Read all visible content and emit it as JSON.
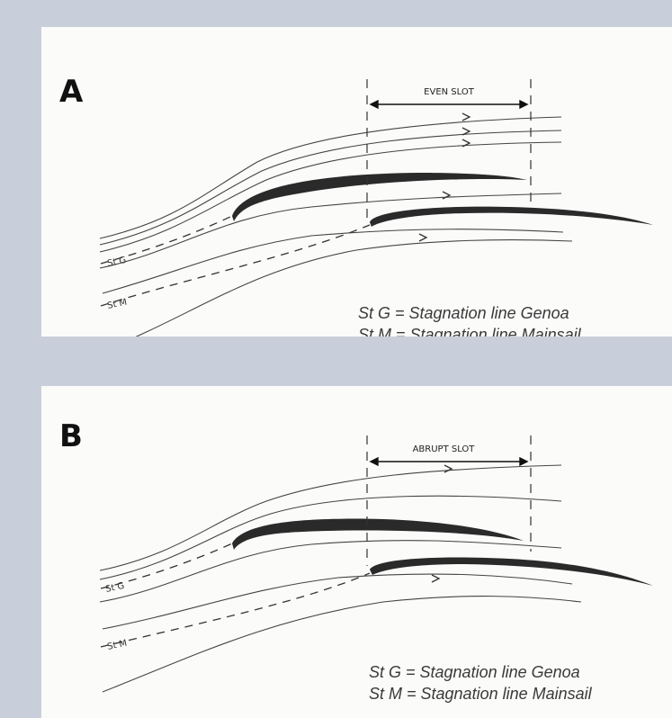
{
  "panels": [
    {
      "letter": "A",
      "slot_label": "EVEN SLOT",
      "stagnation_genoa": "St G",
      "stagnation_main": "St M",
      "legend": [
        "St G = Stagnation line Genoa",
        "St M = Stagnation line Mainsail"
      ]
    },
    {
      "letter": "B",
      "slot_label": "ABRUPT SLOT",
      "stagnation_genoa": "St G",
      "stagnation_main": "St M",
      "legend": [
        "St G = Stagnation line Genoa",
        "St M = Stagnation line Mainsail"
      ]
    }
  ],
  "colors": {
    "background": "#c9cfda",
    "panel": "#fbfbfa",
    "ink": "#222222"
  }
}
